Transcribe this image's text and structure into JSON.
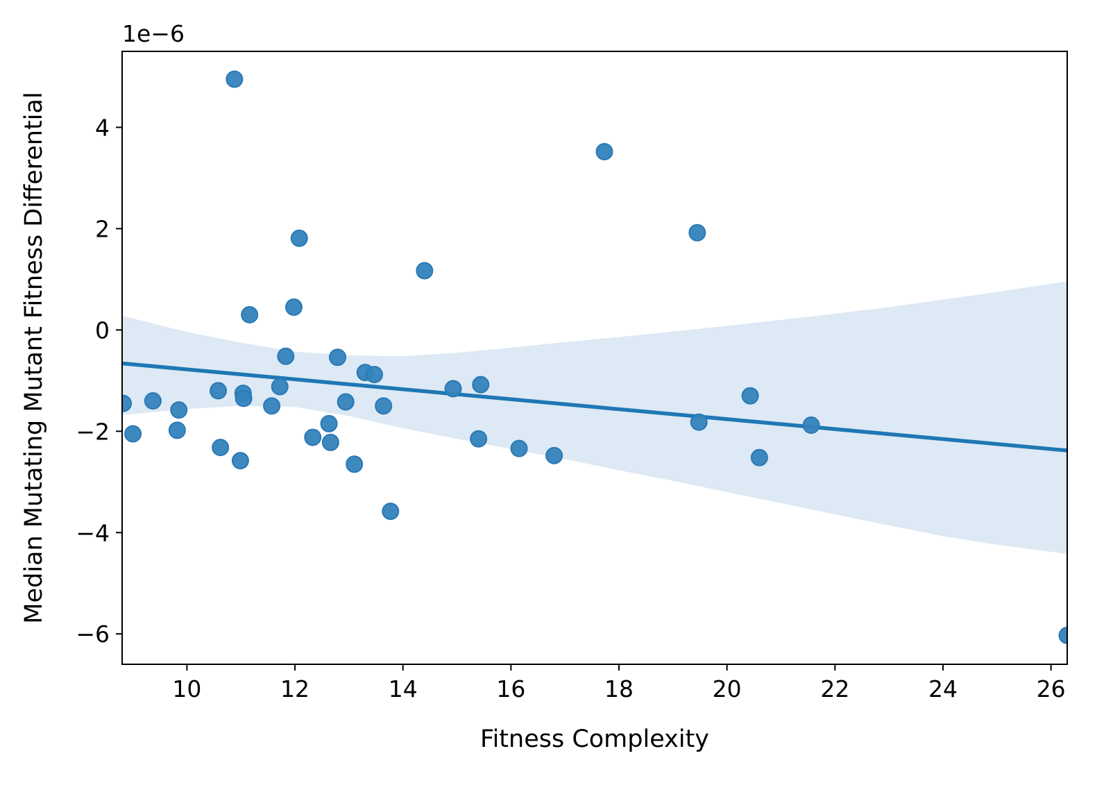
{
  "chart_data": {
    "type": "scatter",
    "xlabel": "Fitness Complexity",
    "ylabel": "Median Mutating Mutant Fitness Differential",
    "y_offset_label": "1e−6",
    "xlim": [
      8.8,
      26.3
    ],
    "ylim": [
      -6.6,
      5.5
    ],
    "x_ticks": [
      10,
      12,
      14,
      16,
      18,
      20,
      22,
      24,
      26
    ],
    "y_ticks": [
      -6,
      -4,
      -2,
      0,
      2,
      4
    ],
    "x_tick_labels": [
      "10",
      "12",
      "14",
      "16",
      "18",
      "20",
      "22",
      "24",
      "26"
    ],
    "y_tick_labels": [
      "−6",
      "−4",
      "−2",
      "0",
      "2",
      "4"
    ],
    "grid": false,
    "point_color": "#3383bc",
    "line_color": "#1f77b4",
    "band_color": "#dde9f4",
    "points": [
      {
        "x": 8.82,
        "y": -1.45
      },
      {
        "x": 9.0,
        "y": -2.05
      },
      {
        "x": 9.37,
        "y": -1.4
      },
      {
        "x": 9.82,
        "y": -1.98
      },
      {
        "x": 9.85,
        "y": -1.58
      },
      {
        "x": 10.58,
        "y": -1.2
      },
      {
        "x": 10.62,
        "y": -2.32
      },
      {
        "x": 10.88,
        "y": 4.95
      },
      {
        "x": 10.99,
        "y": -2.58
      },
      {
        "x": 11.04,
        "y": -1.25
      },
      {
        "x": 11.05,
        "y": -1.35
      },
      {
        "x": 11.16,
        "y": 0.3
      },
      {
        "x": 11.57,
        "y": -1.5
      },
      {
        "x": 11.72,
        "y": -1.12
      },
      {
        "x": 11.83,
        "y": -0.52
      },
      {
        "x": 11.98,
        "y": 0.45
      },
      {
        "x": 12.08,
        "y": 1.81
      },
      {
        "x": 12.33,
        "y": -2.12
      },
      {
        "x": 12.63,
        "y": -1.85
      },
      {
        "x": 12.66,
        "y": -2.22
      },
      {
        "x": 12.79,
        "y": -0.54
      },
      {
        "x": 12.94,
        "y": -1.42
      },
      {
        "x": 13.1,
        "y": -2.65
      },
      {
        "x": 13.3,
        "y": -0.84
      },
      {
        "x": 13.47,
        "y": -0.88
      },
      {
        "x": 13.64,
        "y": -1.5
      },
      {
        "x": 13.77,
        "y": -3.58
      },
      {
        "x": 14.4,
        "y": 1.17
      },
      {
        "x": 14.93,
        "y": -1.16
      },
      {
        "x": 15.4,
        "y": -2.15
      },
      {
        "x": 15.44,
        "y": -1.08
      },
      {
        "x": 16.15,
        "y": -2.34
      },
      {
        "x": 16.8,
        "y": -2.48
      },
      {
        "x": 17.73,
        "y": 3.52
      },
      {
        "x": 19.45,
        "y": 1.92
      },
      {
        "x": 19.48,
        "y": -1.82
      },
      {
        "x": 20.43,
        "y": -1.3
      },
      {
        "x": 20.6,
        "y": -2.52
      },
      {
        "x": 21.56,
        "y": -1.88
      },
      {
        "x": 26.3,
        "y": -6.03
      }
    ],
    "regression": {
      "x": [
        8.8,
        26.3
      ],
      "y": [
        -0.66,
        -2.38
      ]
    },
    "confidence_band": {
      "x": [
        8.8,
        10,
        11,
        12,
        13,
        14,
        15,
        16,
        17,
        18,
        19,
        20,
        21,
        22,
        23,
        24,
        25,
        26.3
      ],
      "upper": [
        0.28,
        -0.04,
        -0.25,
        -0.43,
        -0.5,
        -0.52,
        -0.45,
        -0.35,
        -0.24,
        -0.14,
        -0.03,
        0.08,
        0.2,
        0.32,
        0.45,
        0.6,
        0.75,
        0.96
      ],
      "lower": [
        -1.68,
        -1.56,
        -1.5,
        -1.52,
        -1.7,
        -1.94,
        -2.15,
        -2.35,
        -2.55,
        -2.77,
        -2.98,
        -3.2,
        -3.42,
        -3.64,
        -3.86,
        -4.07,
        -4.24,
        -4.42
      ]
    }
  }
}
